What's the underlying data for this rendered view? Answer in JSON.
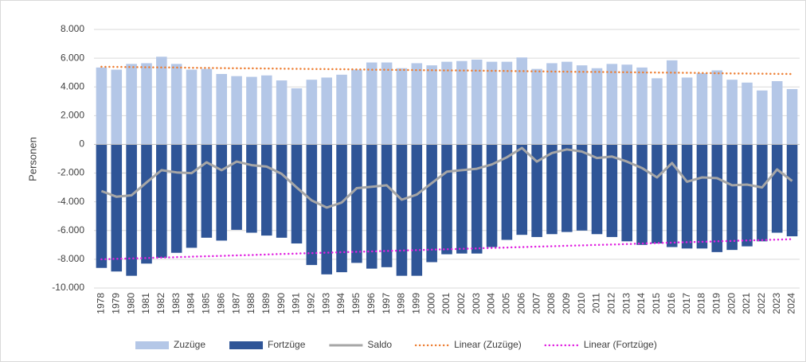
{
  "chart_data": {
    "type": "bar",
    "ylabel": "Personen",
    "categories": [
      "1978",
      "1979",
      "1980",
      "1981",
      "1982",
      "1983",
      "1984",
      "1985",
      "1986",
      "1987",
      "1988",
      "1989",
      "1990",
      "1991",
      "1992",
      "1993",
      "1994",
      "1995",
      "1996",
      "1997",
      "1998",
      "1999",
      "2000",
      "2001",
      "2002",
      "2003",
      "2004",
      "2005",
      "2006",
      "2007",
      "2008",
      "2009",
      "2010",
      "2011",
      "2012",
      "2013",
      "2014",
      "2015",
      "2016",
      "2017",
      "2018",
      "2019",
      "2020",
      "2021",
      "2022",
      "2023",
      "2024"
    ],
    "series": [
      {
        "name": "Zuzüge",
        "type": "bar",
        "color": "#b4c7e7",
        "values": [
          5350,
          5200,
          5600,
          5650,
          6100,
          5600,
          5200,
          5250,
          4900,
          4750,
          4700,
          4800,
          4450,
          3900,
          4500,
          4650,
          4850,
          5200,
          5700,
          5700,
          5300,
          5650,
          5500,
          5750,
          5800,
          5900,
          5750,
          5750,
          6050,
          5250,
          5650,
          5750,
          5500,
          5300,
          5600,
          5550,
          5350,
          4600,
          5850,
          4650,
          4950,
          5150,
          4500,
          4300,
          3750,
          4400,
          3850
        ]
      },
      {
        "name": "Fortzüge",
        "type": "bar",
        "color": "#2f5597",
        "values": [
          -8600,
          -8850,
          -9150,
          -8300,
          -7900,
          -7550,
          -7200,
          -6500,
          -6700,
          -5950,
          -6150,
          -6350,
          -6500,
          -6900,
          -8400,
          -9050,
          -8900,
          -8250,
          -8650,
          -8550,
          -9150,
          -9150,
          -8200,
          -7650,
          -7600,
          -7600,
          -7150,
          -6650,
          -6300,
          -6450,
          -6250,
          -6100,
          -6000,
          -6250,
          -6450,
          -6750,
          -7000,
          -6900,
          -7150,
          -7250,
          -7250,
          -7500,
          -7350,
          -7100,
          -6750,
          -6150,
          -6400
        ]
      },
      {
        "name": "Saldo",
        "type": "line",
        "color": "#a6a6a6",
        "style": "solid",
        "values": [
          -3250,
          -3650,
          -3550,
          -2650,
          -1800,
          -1950,
          -2000,
          -1250,
          -1800,
          -1200,
          -1450,
          -1550,
          -2050,
          -3000,
          -3900,
          -4400,
          -4050,
          -3050,
          -2950,
          -2850,
          -3850,
          -3500,
          -2700,
          -1900,
          -1800,
          -1700,
          -1400,
          -900,
          -250,
          -1200,
          -600,
          -350,
          -500,
          -950,
          -850,
          -1200,
          -1650,
          -2300,
          -1300,
          -2600,
          -2300,
          -2350,
          -2850,
          -2800,
          -3000,
          -1750,
          -2550
        ]
      },
      {
        "name": "Linear (Zuzüge)",
        "type": "line",
        "color": "#ed7d31",
        "style": "dotted",
        "values": [
          5400,
          5390,
          5380,
          5370,
          5360,
          5350,
          5330,
          5320,
          5310,
          5300,
          5290,
          5280,
          5270,
          5260,
          5250,
          5240,
          5230,
          5220,
          5200,
          5190,
          5180,
          5170,
          5160,
          5150,
          5140,
          5130,
          5120,
          5110,
          5100,
          5080,
          5070,
          5060,
          5050,
          5040,
          5030,
          5020,
          5010,
          5000,
          4990,
          4980,
          4970,
          4950,
          4940,
          4930,
          4920,
          4910,
          4900
        ]
      },
      {
        "name": "Linear (Fortzüge)",
        "type": "line",
        "color": "#e020e0",
        "style": "dotted",
        "values": [
          -8000,
          -7970,
          -7940,
          -7910,
          -7880,
          -7850,
          -7820,
          -7790,
          -7760,
          -7730,
          -7700,
          -7670,
          -7630,
          -7600,
          -7570,
          -7540,
          -7510,
          -7480,
          -7450,
          -7420,
          -7390,
          -7360,
          -7330,
          -7300,
          -7270,
          -7240,
          -7210,
          -7180,
          -7150,
          -7120,
          -7090,
          -7060,
          -7030,
          -7000,
          -6970,
          -6940,
          -6900,
          -6870,
          -6840,
          -6810,
          -6780,
          -6750,
          -6720,
          -6690,
          -6660,
          -6630,
          -6600
        ]
      }
    ],
    "ylim": [
      -10000,
      8000
    ],
    "yticks": [
      {
        "value": -10000,
        "label": "-10.000"
      },
      {
        "value": -8000,
        "label": "-8.000"
      },
      {
        "value": -6000,
        "label": "-6.000"
      },
      {
        "value": -4000,
        "label": "-4.000"
      },
      {
        "value": -2000,
        "label": "-2.000"
      },
      0,
      {
        "value": 2000,
        "label": "2.000"
      },
      {
        "value": 4000,
        "label": "4.000"
      },
      {
        "value": 6000,
        "label": "6.000"
      },
      {
        "value": 8000,
        "label": "8.000"
      }
    ],
    "grid": true,
    "legend": "bottom"
  }
}
